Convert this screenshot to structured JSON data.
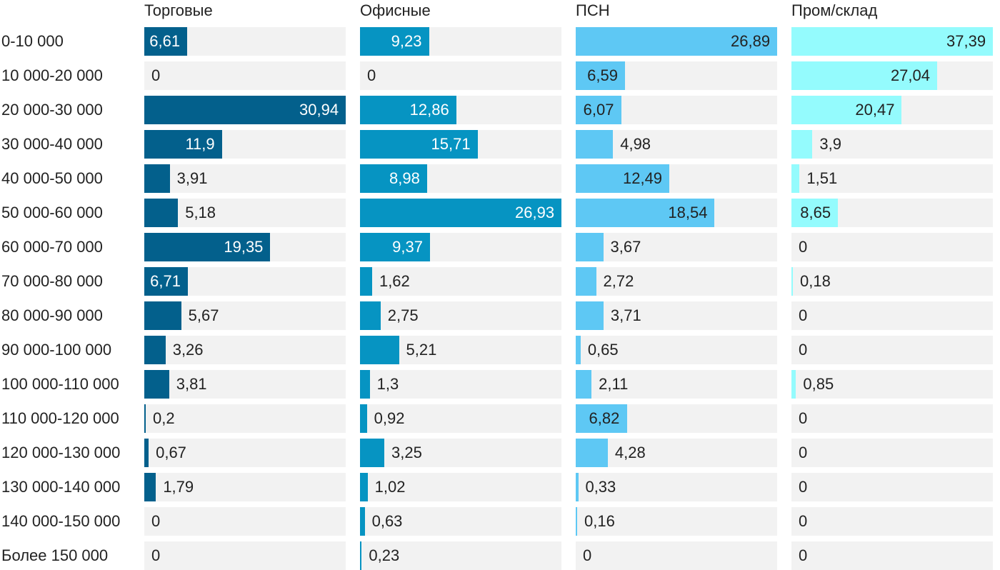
{
  "chart_data": {
    "type": "bar",
    "orientation": "horizontal",
    "categories": [
      "0-10 000",
      "10 000-20 000",
      "20 000-30 000",
      "30 000-40 000",
      "40 000-50 000",
      "50 000-60 000",
      "60 000-70 000",
      "70 000-80 000",
      "80 000-90 000",
      "90 000-100 000",
      "100 000-110 000",
      "110 000-120 000",
      "120 000-130 000",
      "130 000-140 000",
      "140 000-150 000",
      "Более 150 000"
    ],
    "series": [
      {
        "name": "Торговые",
        "color": "#03608c",
        "label_color_inside": "#ffffff",
        "values": [
          6.61,
          0,
          30.94,
          11.9,
          3.91,
          5.18,
          19.35,
          6.71,
          5.67,
          3.26,
          3.81,
          0.2,
          0.67,
          1.79,
          0,
          0
        ],
        "labels": [
          "6,61",
          "0",
          "30,94",
          "11,9",
          "3,91",
          "5,18",
          "19,35",
          "6,71",
          "5,67",
          "3,26",
          "3,81",
          "0,2",
          "0,67",
          "1,79",
          "0",
          "0"
        ]
      },
      {
        "name": "Офисные",
        "color": "#0694c2",
        "label_color_inside": "#ffffff",
        "values": [
          9.23,
          0,
          12.86,
          15.71,
          8.98,
          26.93,
          9.37,
          1.62,
          2.75,
          5.21,
          1.3,
          0.92,
          3.25,
          1.02,
          0.63,
          0.23
        ],
        "labels": [
          "9,23",
          "0",
          "12,86",
          "15,71",
          "8,98",
          "26,93",
          "9,37",
          "1,62",
          "2,75",
          "5,21",
          "1,3",
          "0,92",
          "3,25",
          "1,02",
          "0,63",
          "0,23"
        ]
      },
      {
        "name": "ПСН",
        "color": "#5ec8f4",
        "label_color_inside": "#222222",
        "values": [
          26.89,
          6.59,
          6.07,
          4.98,
          12.49,
          18.54,
          3.67,
          2.72,
          3.71,
          0.65,
          2.11,
          6.82,
          4.28,
          0.33,
          0.16,
          0
        ],
        "labels": [
          "26,89",
          "6,59",
          "6,07",
          "4,98",
          "12,49",
          "18,54",
          "3,67",
          "2,72",
          "3,71",
          "0,65",
          "2,11",
          "6,82",
          "4,28",
          "0,33",
          "0,16",
          "0"
        ]
      },
      {
        "name": "Пром/склад",
        "color": "#94fbfd",
        "label_color_inside": "#222222",
        "values": [
          37.39,
          27.04,
          20.47,
          3.9,
          1.51,
          8.65,
          0,
          0.18,
          0,
          0,
          0.85,
          0,
          0,
          0,
          0,
          0
        ],
        "labels": [
          "37,39",
          "27,04",
          "20,47",
          "3,9",
          "1,51",
          "8,65",
          "0",
          "0,18",
          "0",
          "0",
          "0,85",
          "0",
          "0",
          "0",
          "0",
          "0"
        ]
      }
    ],
    "title": "",
    "xlabel": "",
    "ylabel": "",
    "grid": false,
    "legend": "none"
  }
}
